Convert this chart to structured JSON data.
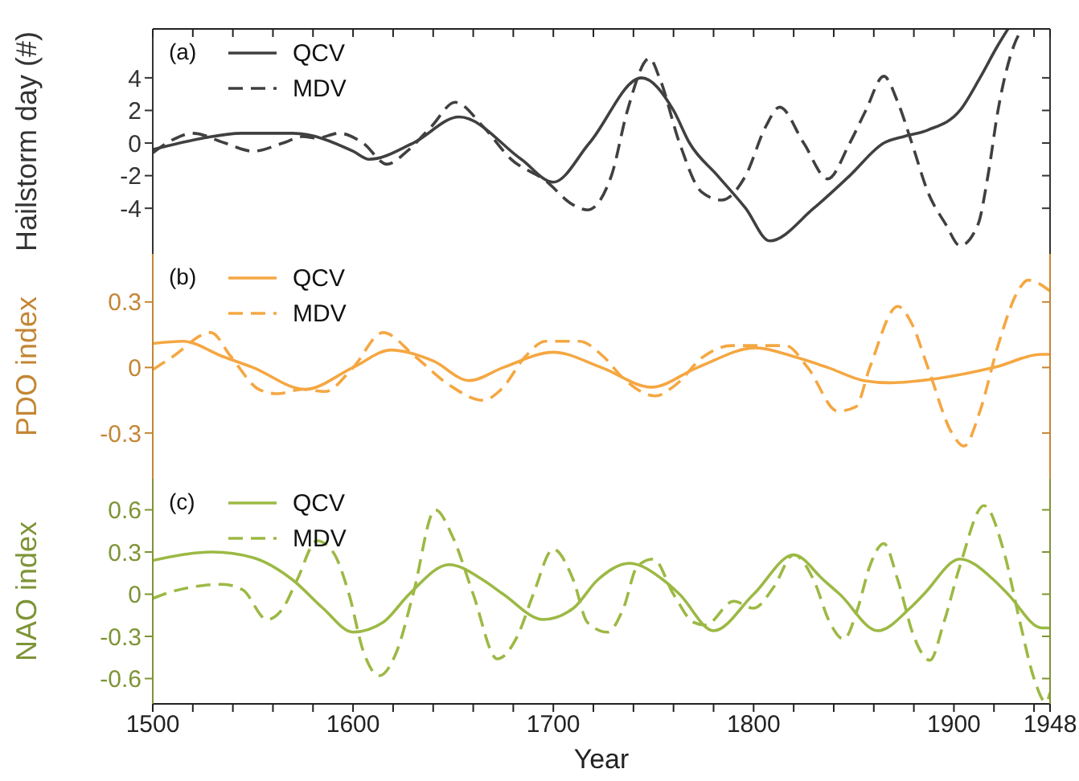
{
  "chart_data": [
    {
      "type": "line",
      "ylabel": "Hailstorm day (#)",
      "annotations": [
        "(a)"
      ],
      "legend": "top left",
      "tick_labels": "y",
      "xlim": [
        1500,
        1948
      ],
      "xticks": [
        1500,
        {
          "value": 1520,
          "label": null
        },
        {
          "value": 1540,
          "label": null
        },
        {
          "value": 1560,
          "label": null
        },
        {
          "value": 1580,
          "label": null
        },
        1600,
        {
          "value": 1620,
          "label": null
        },
        {
          "value": 1640,
          "label": null
        },
        {
          "value": 1660,
          "label": null
        },
        {
          "value": 1680,
          "label": null
        },
        1700,
        {
          "value": 1720,
          "label": null
        },
        {
          "value": 1740,
          "label": null
        },
        {
          "value": 1760,
          "label": null
        },
        {
          "value": 1780,
          "label": null
        },
        1800,
        {
          "value": 1820,
          "label": null
        },
        {
          "value": 1840,
          "label": null
        },
        {
          "value": 1860,
          "label": null
        },
        {
          "value": 1880,
          "label": null
        },
        1900,
        {
          "value": 1920,
          "label": null
        },
        {
          "value": 1940,
          "label": null
        },
        1948
      ],
      "ylim": [
        -6.8,
        7
      ],
      "yticks": [
        -4,
        -2,
        0,
        2,
        4
      ],
      "series": [
        {
          "name": "QCV",
          "color": "#404040",
          "line_style": "solid",
          "x": [
            1500,
            1525,
            1544,
            1570,
            1600,
            1608,
            1630,
            1653,
            1684,
            1700,
            1718,
            1744,
            1760,
            1768,
            1782,
            1796,
            1808,
            1830,
            1848,
            1865,
            1875,
            1887,
            1903,
            1913,
            1922,
            1927
          ],
          "values": [
            -0.4,
            0.3,
            0.6,
            0.6,
            -0.5,
            -1.0,
            0,
            1.6,
            -1.0,
            -2.4,
            0,
            4.0,
            2,
            0,
            -2,
            -4,
            -6.0,
            -4,
            -2,
            0,
            0.4,
            0.8,
            2,
            4,
            6,
            7
          ]
        },
        {
          "name": "MDV",
          "color": "#404040",
          "line_style": "dashed",
          "x": [
            1500,
            1510,
            1520,
            1536,
            1550,
            1565,
            1575,
            1582,
            1593,
            1605,
            1617,
            1627,
            1639,
            1651,
            1665,
            1679,
            1696,
            1710,
            1717,
            1729,
            1737,
            1748,
            1753,
            1763,
            1774,
            1784,
            1796,
            1806,
            1813,
            1825,
            1837,
            1848,
            1856,
            1865,
            1872,
            1879,
            1887,
            1896,
            1903,
            1912,
            1917,
            1922,
            1930,
            1934
          ],
          "values": [
            -0.6,
            0.2,
            0.6,
            0,
            -0.5,
            0,
            0.4,
            0.3,
            0.6,
            0,
            -1.3,
            -0.5,
            1,
            2.5,
            1,
            -1,
            -2.3,
            -3.8,
            -4.1,
            -2,
            2,
            5.2,
            4,
            0,
            -3,
            -3.5,
            -2,
            1,
            2.2,
            0,
            -2.2,
            0,
            2,
            4.1,
            2.5,
            0,
            -3,
            -5,
            -6.3,
            -5,
            -2,
            2,
            6,
            7
          ]
        }
      ]
    },
    {
      "type": "line",
      "ylabel": "PDO index",
      "annotations": [
        "(b)"
      ],
      "legend": "top left",
      "tick_labels": "y",
      "xlim": [
        1500,
        1948
      ],
      "xticks": [
        1500,
        1600,
        1700,
        1800,
        1900,
        1948
      ],
      "ylim": [
        -0.51,
        0.52
      ],
      "yticks": [
        -0.3,
        0,
        0.3
      ],
      "series": [
        {
          "name": "QCV",
          "color": "#f5a742",
          "line_style": "solid",
          "x": [
            1500,
            1515,
            1535,
            1550,
            1576,
            1600,
            1619,
            1640,
            1658,
            1675,
            1700,
            1724,
            1749,
            1772,
            1801,
            1820,
            1837,
            1855,
            1868,
            1892,
            1920,
            1944,
            1948
          ],
          "values": [
            0.11,
            0.12,
            0.05,
            0,
            -0.1,
            0,
            0.08,
            0.03,
            -0.06,
            0,
            0.07,
            0,
            -0.09,
            0,
            0.09,
            0.05,
            0,
            -0.06,
            -0.07,
            -0.05,
            0,
            0.06,
            0.06
          ]
        },
        {
          "name": "MDV",
          "color": "#f5a742",
          "line_style": "dashed",
          "x": [
            1500,
            1510,
            1529,
            1539,
            1553,
            1562,
            1575,
            1586,
            1600,
            1615,
            1631,
            1648,
            1665,
            1674,
            1686,
            1696,
            1713,
            1725,
            1735,
            1751,
            1761,
            1775,
            1789,
            1816,
            1827,
            1842,
            1851,
            1858,
            1872,
            1879,
            1887,
            1899,
            1905,
            1913,
            1922,
            1932,
            1937,
            1948
          ],
          "values": [
            -0.01,
            0.05,
            0.16,
            0.05,
            -0.1,
            -0.12,
            -0.1,
            -0.11,
            0,
            0.16,
            0.05,
            -0.08,
            -0.15,
            -0.1,
            0.05,
            0.12,
            0.12,
            0.05,
            -0.05,
            -0.13,
            -0.08,
            0.05,
            0.1,
            0.1,
            0,
            -0.2,
            -0.18,
            0,
            0.28,
            0.2,
            0,
            -0.3,
            -0.36,
            -0.2,
            0.1,
            0.35,
            0.4,
            0.35
          ]
        }
      ]
    },
    {
      "type": "line",
      "ylabel": "NAO index",
      "xlabel": "Year",
      "annotations": [
        "(c)"
      ],
      "legend": "top left",
      "xlim": [
        1500,
        1948
      ],
      "xticks": [
        1500,
        {
          "value": 1520,
          "label": null
        },
        {
          "value": 1540,
          "label": null
        },
        {
          "value": 1560,
          "label": null
        },
        {
          "value": 1580,
          "label": null
        },
        1600,
        {
          "value": 1620,
          "label": null
        },
        {
          "value": 1640,
          "label": null
        },
        {
          "value": 1660,
          "label": null
        },
        {
          "value": 1680,
          "label": null
        },
        1700,
        {
          "value": 1720,
          "label": null
        },
        {
          "value": 1740,
          "label": null
        },
        {
          "value": 1760,
          "label": null
        },
        {
          "value": 1780,
          "label": null
        },
        1800,
        {
          "value": 1820,
          "label": null
        },
        {
          "value": 1840,
          "label": null
        },
        {
          "value": 1860,
          "label": null
        },
        {
          "value": 1880,
          "label": null
        },
        1900,
        {
          "value": 1920,
          "label": null
        },
        {
          "value": 1940,
          "label": null
        },
        1948
      ],
      "ylim": [
        -0.78,
        0.82
      ],
      "yticks": [
        -0.6,
        -0.3,
        0,
        0.3,
        0.6
      ],
      "series": [
        {
          "name": "QCV",
          "color": "#9cb944",
          "line_style": "solid",
          "x": [
            1500,
            1530,
            1550,
            1570,
            1585,
            1600,
            1615,
            1628,
            1648,
            1665,
            1675,
            1695,
            1710,
            1722,
            1738,
            1755,
            1763,
            1780,
            1800,
            1820,
            1835,
            1843,
            1862,
            1878,
            1885,
            1903,
            1920,
            1927,
            1944,
            1948
          ],
          "values": [
            0.24,
            0.3,
            0.26,
            0.1,
            -0.1,
            -0.27,
            -0.2,
            0,
            0.21,
            0.1,
            0,
            -0.18,
            -0.1,
            0.1,
            0.22,
            0.1,
            0,
            -0.26,
            0,
            0.28,
            0.1,
            0,
            -0.26,
            -0.1,
            0,
            0.25,
            0.1,
            0,
            -0.24,
            -0.24
          ]
        },
        {
          "name": "MDV",
          "color": "#9cb944",
          "line_style": "dashed",
          "x": [
            1500,
            1510,
            1535,
            1545,
            1557,
            1565,
            1572,
            1582,
            1590,
            1598,
            1605,
            1613,
            1622,
            1630,
            1641,
            1650,
            1660,
            1672,
            1682,
            1690,
            1700,
            1710,
            1717,
            1727,
            1735,
            1742,
            1750,
            1760,
            1770,
            1776,
            1790,
            1800,
            1810,
            1820,
            1830,
            1838,
            1845,
            1852,
            1858,
            1865,
            1872,
            1880,
            1888,
            1895,
            1903,
            1915,
            1925,
            1933,
            1940,
            1946,
            1948
          ],
          "values": [
            -0.03,
            0.02,
            0.07,
            0.03,
            -0.18,
            -0.1,
            0.1,
            0.38,
            0.3,
            0,
            -0.4,
            -0.58,
            -0.4,
            0,
            0.6,
            0.4,
            0,
            -0.46,
            -0.3,
            0,
            0.32,
            0.1,
            -0.2,
            -0.27,
            -0.1,
            0.2,
            0.25,
            0,
            -0.2,
            -0.22,
            -0.05,
            -0.1,
            0.05,
            0.28,
            0.1,
            -0.2,
            -0.32,
            -0.1,
            0.2,
            0.36,
            0.1,
            -0.3,
            -0.47,
            -0.2,
            0.2,
            0.63,
            0.3,
            -0.2,
            -0.6,
            -0.77,
            -0.7
          ]
        }
      ]
    }
  ]
}
